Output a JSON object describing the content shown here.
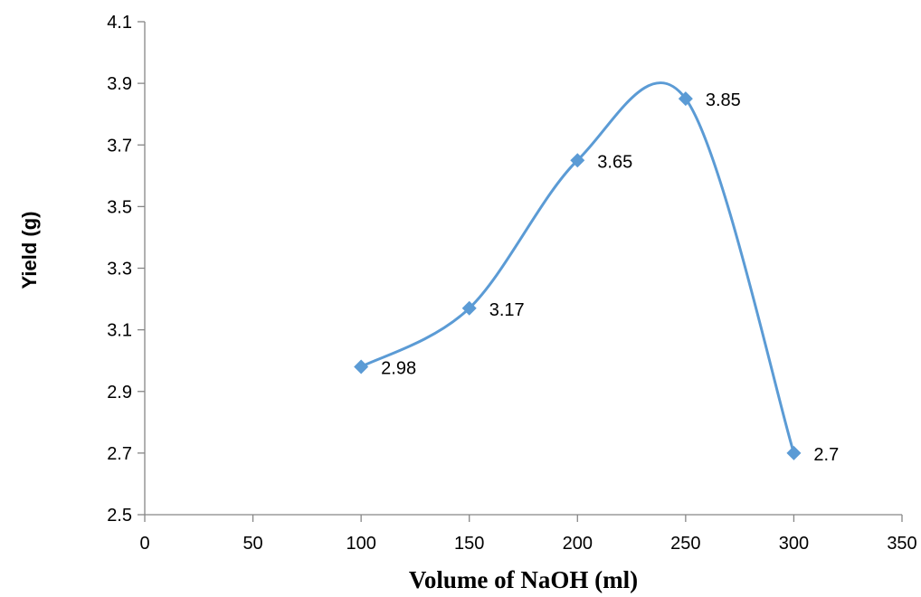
{
  "chart_data": {
    "type": "line",
    "smooth": true,
    "x": [
      100,
      150,
      200,
      250,
      300
    ],
    "y": [
      2.98,
      3.17,
      3.65,
      3.85,
      2.7
    ],
    "data_labels": [
      "2.98",
      "3.17",
      "3.65",
      "3.85",
      "2.7"
    ],
    "xlabel": "Volume of NaOH (ml)",
    "ylabel": "Yield (g)",
    "xlim": [
      0,
      350
    ],
    "ylim": [
      2.5,
      4.1
    ],
    "xticks": [
      "0",
      "50",
      "100",
      "150",
      "200",
      "250",
      "300",
      "350"
    ],
    "yticks": [
      "2.5",
      "2.7",
      "2.9",
      "3.1",
      "3.3",
      "3.5",
      "3.7",
      "3.9",
      "4.1"
    ],
    "marker": "diamond",
    "grid": false,
    "legend": "none",
    "series_color": "#5B9BD5"
  }
}
